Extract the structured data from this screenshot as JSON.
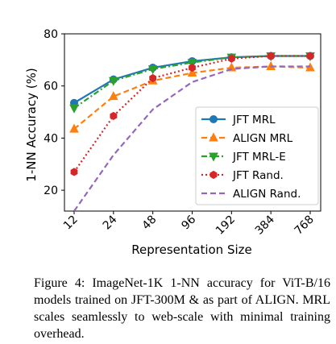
{
  "chart_data": {
    "type": "line",
    "xlabel": "Representation Size",
    "ylabel": "1-NN Accuracy (%)",
    "categories": [
      "12",
      "24",
      "48",
      "96",
      "192",
      "384",
      "768"
    ],
    "x_scale": "log2",
    "ylim": [
      12,
      80
    ],
    "yticks": [
      20,
      40,
      60,
      80
    ],
    "grid": false,
    "legend_position": "lower-right",
    "series": [
      {
        "name": "JFT MRL",
        "values": [
          53.5,
          62.5,
          67.0,
          69.5,
          71.0,
          71.5,
          71.5
        ],
        "color": "#1f77b4",
        "linestyle": "solid",
        "marker": "circle"
      },
      {
        "name": "ALIGN MRL",
        "values": [
          43.5,
          56.0,
          62.0,
          65.0,
          67.0,
          67.5,
          67.0
        ],
        "color": "#ff7f0e",
        "linestyle": "dashed",
        "marker": "triangle-up"
      },
      {
        "name": "JFT MRL-E",
        "values": [
          51.5,
          62.0,
          66.5,
          69.0,
          71.0,
          71.5,
          71.5
        ],
        "color": "#2ca02c",
        "linestyle": "dashdot",
        "marker": "triangle-down"
      },
      {
        "name": "JFT Rand.",
        "values": [
          27.0,
          48.5,
          63.0,
          67.0,
          70.5,
          71.5,
          71.5
        ],
        "color": "#d62728",
        "linestyle": "dotted",
        "marker": "hexagon"
      },
      {
        "name": "ALIGN Rand.",
        "values": [
          12.0,
          33.5,
          51.0,
          61.5,
          66.5,
          67.5,
          67.5
        ],
        "color": "#9467bd",
        "linestyle": "dashed",
        "marker": "none"
      }
    ]
  },
  "caption": "Figure 4: ImageNet-1K 1-NN accuracy for ViT-B/16 models trained on JFT-300M & as part of ALIGN. MRL scales seamlessly to web-scale with minimal training overhead."
}
